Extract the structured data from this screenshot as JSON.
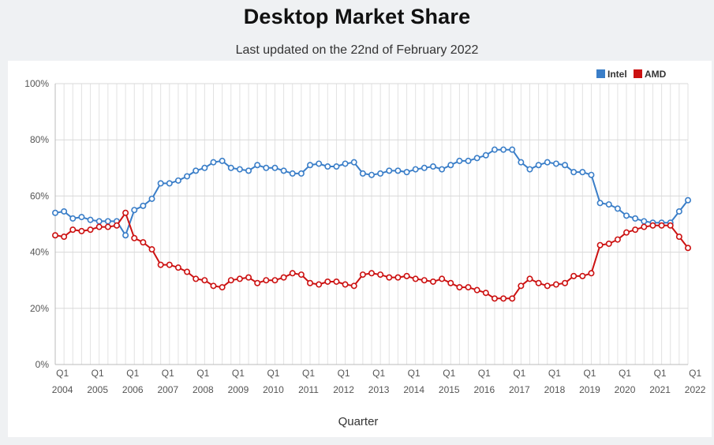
{
  "title": "Desktop Market Share",
  "subtitle": "Last updated on the 22nd of February 2022",
  "colors": {
    "intel": "#3a7ec8",
    "amd": "#cc1111"
  },
  "chart_data": {
    "type": "line",
    "xlabel": "Quarter",
    "ylabel": "",
    "ylim": [
      0,
      100
    ],
    "y_ticks": [
      "0%",
      "20%",
      "40%",
      "60%",
      "80%",
      "100%"
    ],
    "x_tick_top": [
      "Q1",
      "Q1",
      "Q1",
      "Q1",
      "Q1",
      "Q1",
      "Q1",
      "Q1",
      "Q1",
      "Q1",
      "Q1",
      "Q1",
      "Q1",
      "Q1",
      "Q1",
      "Q1",
      "Q1",
      "Q1",
      "Q1"
    ],
    "x_tick_bottom": [
      "2004",
      "2005",
      "2006",
      "2007",
      "2008",
      "2009",
      "2010",
      "2011",
      "2012",
      "2013",
      "2014",
      "2015",
      "2016",
      "2017",
      "2018",
      "2019",
      "2020",
      "2021",
      "2022"
    ],
    "grid": true,
    "legend_position": "top-right",
    "legend": [
      "Intel",
      "AMD"
    ],
    "series": [
      {
        "name": "Intel",
        "values": [
          54,
          54.5,
          52,
          52.5,
          51.5,
          51,
          51,
          51,
          46,
          55,
          56.5,
          59,
          64.5,
          64.5,
          65.5,
          67,
          69,
          70,
          72,
          72.5,
          70,
          69.5,
          69,
          71,
          70,
          70,
          69,
          68,
          68,
          71,
          71.5,
          70.5,
          70.5,
          71.5,
          72,
          68,
          67.5,
          68,
          69,
          69,
          68.5,
          69.5,
          70,
          70.5,
          69.5,
          71,
          72.5,
          72.5,
          73.5,
          74.5,
          76.5,
          76.5,
          76.5,
          72,
          69.5,
          71,
          72,
          71.5,
          71,
          68.5,
          68.5,
          67.5,
          57.5,
          57,
          55.5,
          53,
          52,
          51,
          50.5,
          50.5,
          50.5,
          54.5,
          58.5
        ]
      },
      {
        "name": "AMD",
        "values": [
          46,
          45.5,
          48,
          47.5,
          48,
          49,
          49,
          49.5,
          54,
          45,
          43.5,
          41,
          35.5,
          35.5,
          34.5,
          33,
          30.5,
          30,
          28,
          27.5,
          30,
          30.5,
          31,
          29,
          30,
          30,
          31,
          32.5,
          32,
          29,
          28.5,
          29.5,
          29.5,
          28.5,
          28,
          32,
          32.5,
          32,
          31,
          31,
          31.5,
          30.5,
          30,
          29.5,
          30.5,
          29,
          27.5,
          27.5,
          26.5,
          25.5,
          23.5,
          23.5,
          23.5,
          28,
          30.5,
          29,
          28,
          28.5,
          29,
          31.5,
          31.5,
          32.5,
          42.5,
          43,
          44.5,
          47,
          48,
          49,
          49.5,
          49.5,
          49.5,
          45.5,
          41.5
        ]
      }
    ]
  }
}
